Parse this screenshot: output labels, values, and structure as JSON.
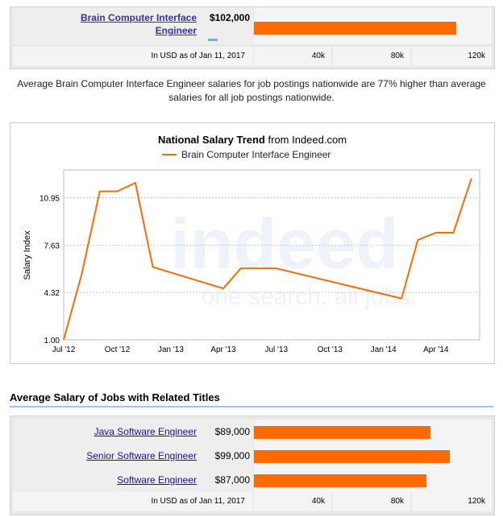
{
  "top": {
    "job_title": "Brain Computer Interface Engineer",
    "salary": "$102,000",
    "salary_value": 102000,
    "currency_note": "In USD as of Jan 11, 2017",
    "ticks": [
      "40k",
      "80k",
      "120k"
    ],
    "scale_max": 120000
  },
  "comparison_text": "Average Brain Computer Interface Engineer salaries for job postings nationwide are 77% higher than average salaries for all job postings nationwide.",
  "chart_data": {
    "type": "line",
    "title_bold": "National Salary Trend",
    "title_rest": " from Indeed.com",
    "ylabel": "Salary Index",
    "series": [
      {
        "name": "Brain Computer Interface Engineer",
        "color": "#fd6a00",
        "x": [
          "2012-07-01",
          "2012-08-01",
          "2012-09-01",
          "2012-10-01",
          "2012-11-01",
          "2012-12-01",
          "2013-04-01",
          "2013-05-01",
          "2013-07-01",
          "2014-02-01",
          "2014-03-01",
          "2014-04-01",
          "2014-05-01",
          "2014-06-01"
        ],
        "values": [
          1.0,
          5.6,
          11.4,
          11.4,
          12.0,
          6.1,
          4.6,
          6.0,
          6.0,
          3.9,
          8.0,
          8.5,
          8.5,
          12.3
        ]
      }
    ],
    "y_ticks": [
      "1.00",
      "4.32",
      "7.63",
      "10.95"
    ],
    "ylim": [
      1.0,
      12.9
    ],
    "x_ticks": [
      "Jul '12",
      "Oct '12",
      "Jan '13",
      "Apr '13",
      "Jul '13",
      "Oct '13",
      "Jan '14",
      "Apr '14"
    ],
    "xlim": [
      "2012-07-01",
      "2014-06-15"
    ],
    "grid": true,
    "legend_position": "top",
    "watermark": {
      "logo": "indeed",
      "tagline": "one search. all jobs."
    }
  },
  "related": {
    "heading": "Average Salary of Jobs with Related Titles",
    "currency_note": "In USD as of Jan 11, 2017",
    "ticks": [
      "40k",
      "80k",
      "120k"
    ],
    "rows": [
      {
        "title": "Java Software Engineer",
        "salary": "$89,000",
        "value": 89000
      },
      {
        "title": "Senior Software Engineer",
        "salary": "$99,000",
        "value": 99000
      },
      {
        "title": "Software Engineer",
        "salary": "$87,000",
        "value": 87000
      }
    ]
  }
}
